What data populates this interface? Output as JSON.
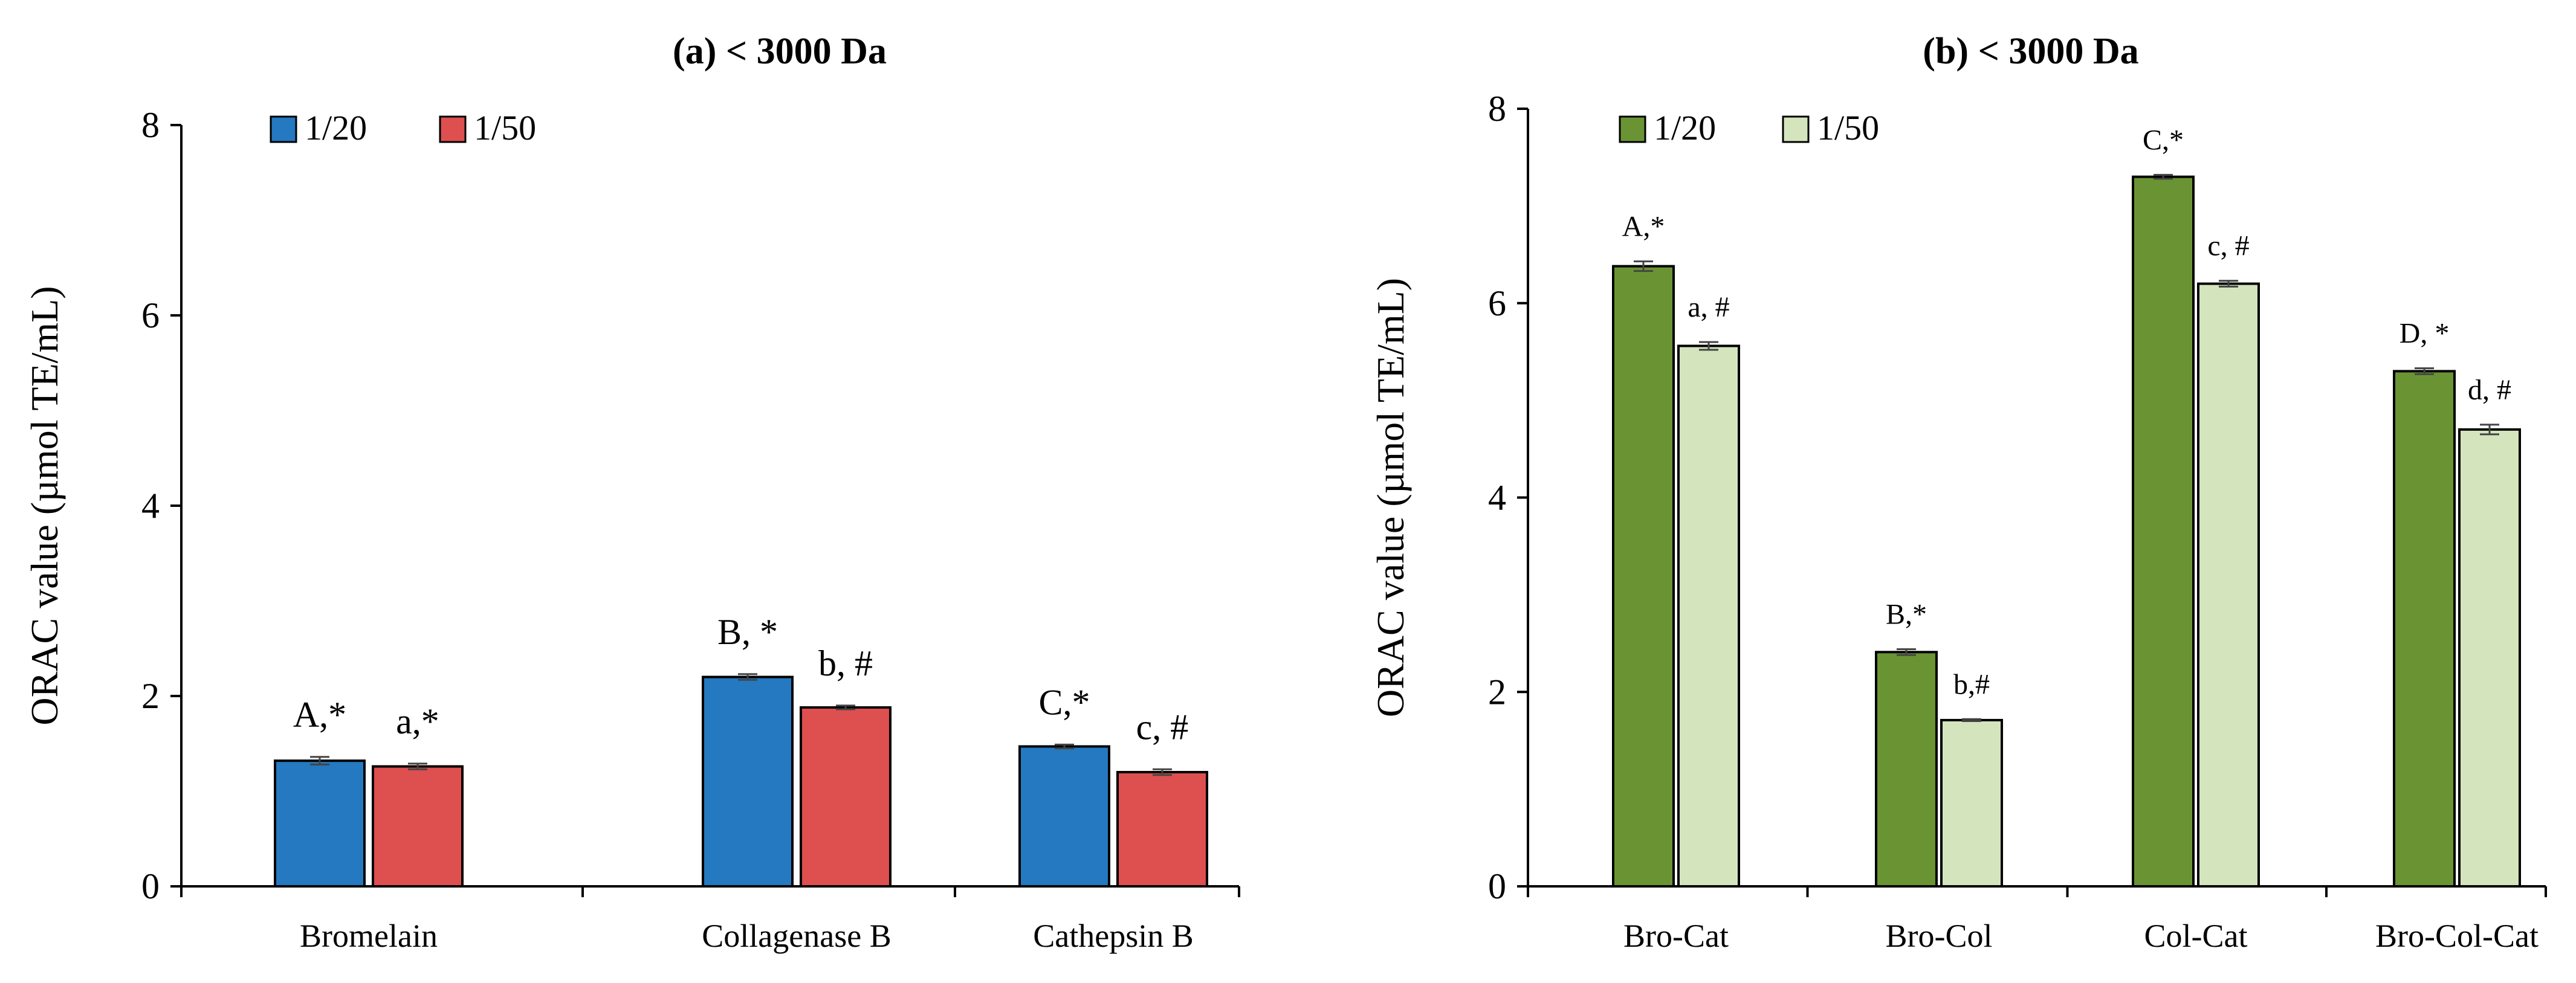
{
  "chart_data": [
    {
      "type": "bar",
      "title": "(a)  < 3000 Da",
      "ylabel": "ORAC value (µmol TE/mL)",
      "xlabel": "",
      "ylim": [
        0,
        8
      ],
      "yticks": [
        0,
        2,
        4,
        6,
        8
      ],
      "grid": false,
      "legend_position": "top-left",
      "categories": [
        "Bromelain",
        "Collagenase B",
        "Cathepsin B"
      ],
      "series": [
        {
          "name": "1/20",
          "color": "#2479c0",
          "values": [
            1.32,
            2.2,
            1.47
          ],
          "errors": [
            0.04,
            0.03,
            0.02
          ],
          "labels": [
            "A,*",
            "B, *",
            "C,*"
          ]
        },
        {
          "name": "1/50",
          "color": "#de4f4f",
          "values": [
            1.26,
            1.88,
            1.2
          ],
          "errors": [
            0.03,
            0.02,
            0.03
          ],
          "labels": [
            "a,*",
            "b, #",
            "c, #"
          ]
        }
      ]
    },
    {
      "type": "bar",
      "title": "(b)  < 3000 Da",
      "ylabel": "ORAC value (µmol TE/mL)",
      "xlabel": "",
      "ylim": [
        0,
        8
      ],
      "yticks": [
        0,
        2,
        4,
        6,
        8
      ],
      "grid": false,
      "legend_position": "top-left",
      "categories": [
        "Bro-Cat",
        "Bro-Col",
        "Col-Cat",
        "Bro-Col-Cat"
      ],
      "series": [
        {
          "name": "1/20",
          "color": "#6a9434",
          "values": [
            6.38,
            2.41,
            7.3,
            5.3
          ],
          "errors": [
            0.05,
            0.03,
            0.02,
            0.03
          ],
          "labels": [
            "A,*",
            "B,*",
            "C,*",
            "D, *"
          ]
        },
        {
          "name": "1/50",
          "color": "#d4e5bd",
          "values": [
            5.56,
            1.71,
            6.2,
            4.7
          ],
          "errors": [
            0.04,
            0.01,
            0.03,
            0.05
          ],
          "labels": [
            "a, #",
            "b,#",
            "c, #",
            "d, #"
          ]
        }
      ]
    }
  ]
}
